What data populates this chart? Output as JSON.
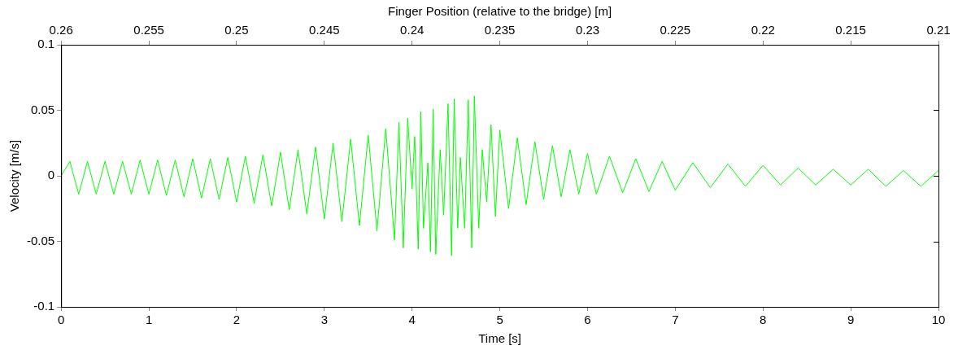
{
  "chart_data": {
    "type": "line",
    "xlabel": "Time [s]",
    "ylabel": "Velocity [m/s]",
    "x2label": "Finger Position (relative to the bridge) [m]",
    "xlim": [
      0,
      10
    ],
    "xticks": [
      0,
      1,
      2,
      3,
      4,
      5,
      6,
      7,
      8,
      9,
      10
    ],
    "x2lim": [
      0.26,
      0.21
    ],
    "x2ticks": [
      0.26,
      0.255,
      0.25,
      0.245,
      0.24,
      0.235,
      0.23,
      0.225,
      0.22,
      0.215,
      0.21
    ],
    "ylim": [
      -0.1,
      0.1
    ],
    "yticks": [
      -0.1,
      -0.05,
      0,
      0.05,
      0.1
    ],
    "series": [
      {
        "color": "#00ff00",
        "x": [
          0,
          0.1,
          0.2,
          0.3,
          0.4,
          0.5,
          0.6,
          0.7,
          0.8,
          0.9,
          1.0,
          1.1,
          1.2,
          1.3,
          1.4,
          1.5,
          1.6,
          1.7,
          1.8,
          1.9,
          2.0,
          2.1,
          2.2,
          2.3,
          2.4,
          2.5,
          2.6,
          2.7,
          2.8,
          2.9,
          3.0,
          3.1,
          3.2,
          3.3,
          3.4,
          3.5,
          3.6,
          3.7,
          3.8,
          3.85,
          3.9,
          3.95,
          4.0,
          4.03,
          4.07,
          4.1,
          4.13,
          4.18,
          4.21,
          4.24,
          4.27,
          4.32,
          4.36,
          4.41,
          4.45,
          4.48,
          4.52,
          4.55,
          4.6,
          4.64,
          4.68,
          4.71,
          4.76,
          4.8,
          4.85,
          4.9,
          4.95,
          5.0,
          5.1,
          5.2,
          5.3,
          5.4,
          5.5,
          5.6,
          5.7,
          5.8,
          5.9,
          6.0,
          6.1,
          6.25,
          6.4,
          6.55,
          6.7,
          6.85,
          7.0,
          7.2,
          7.4,
          7.6,
          7.8,
          8.0,
          8.2,
          8.4,
          8.6,
          8.8,
          9.0,
          9.2,
          9.4,
          9.6,
          9.8,
          10.0
        ],
        "values": [
          0,
          0.011,
          -0.014,
          0.011,
          -0.014,
          0.011,
          -0.014,
          0.011,
          -0.014,
          0.012,
          -0.014,
          0.012,
          -0.015,
          0.012,
          -0.016,
          0.013,
          -0.017,
          0.013,
          -0.018,
          0.014,
          -0.02,
          0.015,
          -0.021,
          0.016,
          -0.023,
          0.018,
          -0.026,
          0.02,
          -0.029,
          0.022,
          -0.033,
          0.025,
          -0.035,
          0.028,
          -0.038,
          0.031,
          -0.042,
          0.036,
          -0.049,
          0.041,
          -0.055,
          0.044,
          -0.01,
          0.03,
          -0.056,
          0.049,
          -0.04,
          0.01,
          -0.058,
          0.051,
          -0.06,
          0.02,
          -0.03,
          0.055,
          -0.061,
          0.059,
          -0.04,
          0.014,
          -0.04,
          0.058,
          -0.055,
          0.061,
          -0.04,
          0.02,
          -0.02,
          0.039,
          -0.031,
          0.035,
          -0.025,
          0.029,
          -0.022,
          0.026,
          -0.018,
          0.023,
          -0.016,
          0.02,
          -0.014,
          0.017,
          -0.014,
          0.015,
          -0.013,
          0.013,
          -0.012,
          0.011,
          -0.011,
          0.01,
          -0.009,
          0.009,
          -0.008,
          0.008,
          -0.007,
          0.006,
          -0.007,
          0.005,
          -0.007,
          0.005,
          -0.008,
          0.004,
          -0.008,
          0.004
        ]
      }
    ]
  }
}
